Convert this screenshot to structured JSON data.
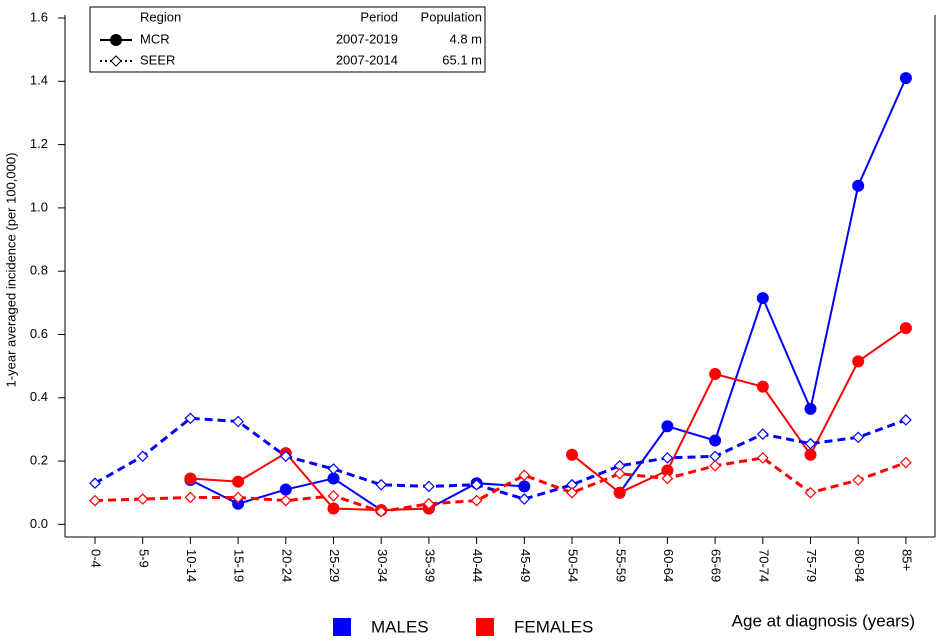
{
  "chart_data": {
    "type": "line",
    "y_label": "1-year averaged incidence (per 100,000)",
    "x_label": "Age at diagnosis (years)",
    "categories": [
      "0-4",
      "5-9",
      "10-14",
      "15-19",
      "20-24",
      "25-29",
      "30-34",
      "35-39",
      "40-44",
      "45-49",
      "50-54",
      "55-59",
      "60-64",
      "65-69",
      "70-74",
      "75-79",
      "80-84",
      "85+"
    ],
    "ylim": [
      -0.04,
      1.6
    ],
    "yticks": [
      {
        "value": 0,
        "label": "0.0"
      },
      0.2,
      0.4,
      0.6,
      0.8,
      {
        "value": 1,
        "label": "1.0"
      },
      1.2,
      1.4,
      1.6
    ],
    "series": [
      {
        "color": "#0000ff",
        "dash": false,
        "marker": "circle",
        "values": [
          null,
          null,
          0.14,
          0.065,
          0.11,
          0.145,
          0.045,
          0.05,
          0.13,
          0.12,
          null,
          0.1,
          0.31,
          0.265,
          0.715,
          0.365,
          1.07,
          1.41
        ]
      },
      {
        "color": "#ff0000",
        "dash": false,
        "marker": "circle",
        "values": [
          null,
          null,
          0.145,
          0.135,
          0.225,
          0.05,
          0.045,
          0.05,
          null,
          null,
          0.22,
          0.1,
          0.17,
          0.475,
          0.435,
          0.22,
          0.515,
          0.62
        ]
      },
      {
        "color": "#0000ff",
        "dash": true,
        "marker": "diamond",
        "values": [
          0.13,
          0.215,
          0.335,
          0.325,
          0.215,
          0.175,
          0.125,
          0.12,
          0.125,
          0.08,
          0.125,
          0.185,
          0.21,
          0.215,
          0.285,
          0.255,
          0.275,
          0.33
        ]
      },
      {
        "color": "#ff0000",
        "dash": true,
        "marker": "diamond",
        "values": [
          0.075,
          0.08,
          0.085,
          0.085,
          0.075,
          0.09,
          0.04,
          0.065,
          0.075,
          0.155,
          0.1,
          0.16,
          0.145,
          0.185,
          0.21,
          0.1,
          0.14,
          0.195
        ]
      }
    ],
    "region_legend": {
      "headers": [
        "Region",
        "Period",
        "Population"
      ],
      "rows": [
        [
          "MCR",
          "2007-2019",
          "4.8 m"
        ],
        [
          "SEER",
          "2007-2014",
          "65.1 m"
        ]
      ]
    },
    "sex_legend": [
      {
        "label": "MALES",
        "color": "#0000ff"
      },
      {
        "label": "FEMALES",
        "color": "#ff0000"
      }
    ]
  }
}
